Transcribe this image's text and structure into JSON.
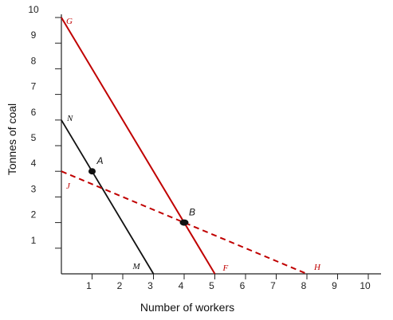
{
  "chart_data": {
    "type": "line",
    "xlabel": "Number of workers",
    "ylabel": "Tonnes of coal",
    "xlim": [
      0,
      10
    ],
    "ylim": [
      0,
      10
    ],
    "x_ticks": [
      "1",
      "2",
      "3",
      "4",
      "5",
      "6",
      "7",
      "8",
      "9",
      "10"
    ],
    "y_ticks": [
      "1",
      "2",
      "3",
      "4",
      "5",
      "6",
      "7",
      "8",
      "9",
      "10"
    ],
    "grid": false,
    "colors": {
      "axis": "#222222",
      "black_line": "#111111",
      "red_line": "#c00000"
    },
    "lines": [
      {
        "id": "NM",
        "start_label": "N",
        "end_label": "M",
        "points": [
          [
            0,
            6
          ],
          [
            3,
            0
          ]
        ],
        "color": "#111111",
        "dash": false
      },
      {
        "id": "GF",
        "start_label": "G",
        "end_label": "F",
        "points": [
          [
            0,
            10
          ],
          [
            5,
            0
          ]
        ],
        "color": "#c00000",
        "dash": false
      },
      {
        "id": "JH",
        "start_label": "J",
        "end_label": "H",
        "points": [
          [
            0,
            4
          ],
          [
            8,
            0
          ]
        ],
        "color": "#c00000",
        "dash": true
      }
    ],
    "points": [
      {
        "label": "A",
        "x": 1,
        "y": 4
      },
      {
        "label": "B",
        "x": 4,
        "y": 2
      }
    ]
  }
}
